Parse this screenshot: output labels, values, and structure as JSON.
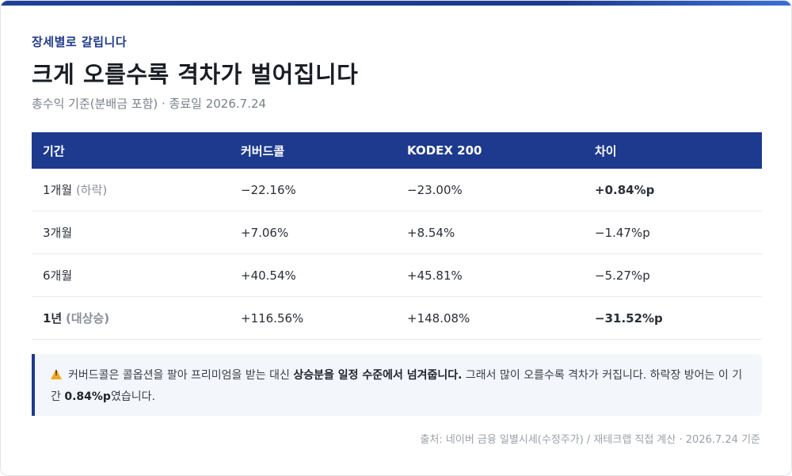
{
  "eyebrow": "장세별로 갈립니다",
  "title": "크게 오를수록 격차가 벌어집니다",
  "subtitle": "총수익 기준(분배금 포함) · 종료일 2026.7.24",
  "table": {
    "headers": [
      "기간",
      "커버드콜",
      "KODEX 200",
      "차이"
    ],
    "rows": [
      {
        "period": "1개월",
        "note": "(하락)",
        "covered": "−22.16%",
        "kodex": "−23.00%",
        "diff": "+0.84%p",
        "diff_style": "pos",
        "period_bold": false
      },
      {
        "period": "3개월",
        "note": "",
        "covered": "+7.06%",
        "kodex": "+8.54%",
        "diff": "−1.47%p",
        "diff_style": "plain",
        "period_bold": false
      },
      {
        "period": "6개월",
        "note": "",
        "covered": "+40.54%",
        "kodex": "+45.81%",
        "diff": "−5.27%p",
        "diff_style": "plain",
        "period_bold": false
      },
      {
        "period": "1년",
        "note": "(대상승)",
        "covered": "+116.56%",
        "kodex": "+148.08%",
        "diff": "−31.52%p",
        "diff_style": "neg",
        "period_bold": true
      }
    ]
  },
  "callout": {
    "icon": "warning-icon",
    "text_1": "커버드콜은 콜옵션을 팔아 프리미엄을 받는 대신 ",
    "bold_1": "상승분을 일정 수준에서 넘겨줍니다.",
    "text_2": " 그래서 많이 오를수록 격차가 커집니다. 하락장 방어는 이 기간 ",
    "bold_2": "0.84%p",
    "text_3": "였습니다."
  },
  "source": "출처: 네이버 금융 일별시세(수정주가) / 재테크랩 직접 계산 · 2026.7.24 기준",
  "colors": {
    "accent": "#1d3a8e",
    "positive": "#1e8a3c",
    "negative": "#c0392b",
    "warning": "#f5a623"
  }
}
